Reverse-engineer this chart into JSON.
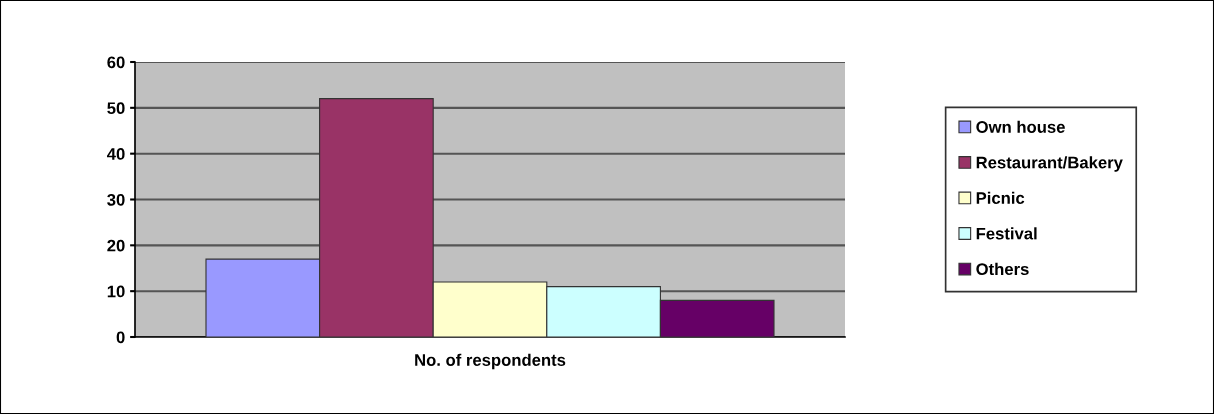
{
  "chart_data": {
    "type": "bar",
    "categories": [
      "No. of respondents"
    ],
    "series": [
      {
        "name": "Own house",
        "color": "#9999ff",
        "values": [
          17
        ]
      },
      {
        "name": "Restaurant/Bakery",
        "color": "#993366",
        "values": [
          52
        ]
      },
      {
        "name": "Picnic",
        "color": "#ffffcc",
        "values": [
          12
        ]
      },
      {
        "name": "Festival",
        "color": "#ccffff",
        "values": [
          11
        ]
      },
      {
        "name": "Others",
        "color": "#660066",
        "values": [
          8
        ]
      }
    ],
    "ylim": [
      0,
      60
    ],
    "yticks": [
      0,
      10,
      20,
      30,
      40,
      50,
      60
    ],
    "grid": "y",
    "legend": "right"
  }
}
